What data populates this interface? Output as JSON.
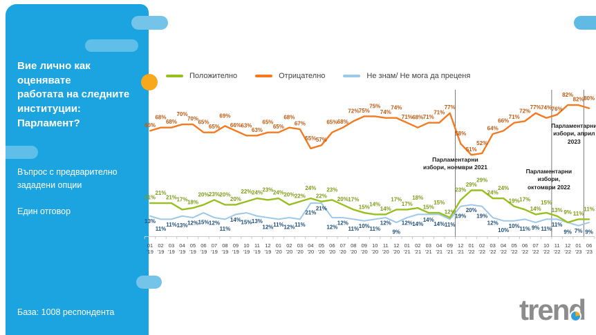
{
  "sidebar": {
    "title": "Вие лично как оценявате\nработата на следните\nинституции:\nПарламент?",
    "subtitle1": "Въпрос с предварително\nзададени опции",
    "subtitle2": "Един отговор",
    "base": "База: 1008 респондента"
  },
  "logo": {
    "text": "trend"
  },
  "chart_data": {
    "type": "line",
    "categories": [
      "01 '19",
      "02 '19",
      "03 '19",
      "04 '19",
      "05 '19",
      "06 '19",
      "07 '19",
      "08 '19",
      "09 '19",
      "10 '19",
      "11 '19",
      "12 '19",
      "01 '20",
      "02 '20",
      "03 '20",
      "04 '20",
      "05 '20",
      "06 '20",
      "07 '20",
      "08 '20",
      "09 '20",
      "10 '20",
      "11 '20",
      "12 '20",
      "01 '21",
      "02 '21",
      "03 '21",
      "04 '21",
      "09 '21",
      "12 '21",
      "01 '22",
      "02 '22",
      "03 '22",
      "04 '22",
      "05 '22",
      "06 '22",
      "07 '22",
      "10 '22",
      "11 '22",
      "12 '22",
      "01 '23",
      "06 '23"
    ],
    "series": [
      {
        "name": "Положително",
        "color": "#97BF1E",
        "label_color": "#7D9C18",
        "values": [
          21,
          21,
          21,
          17,
          18,
          20,
          23,
          20,
          20,
          22,
          24,
          23,
          24,
          20,
          22,
          24,
          22,
          23,
          20,
          17,
          15,
          14,
          14,
          17,
          17,
          18,
          15,
          15,
          12,
          23,
          29,
          29,
          24,
          24,
          19,
          17,
          14,
          15,
          13,
          9,
          11,
          11
        ]
      },
      {
        "name": "Отрицателно",
        "color": "#F4791F",
        "label_color": "#C05A11",
        "values": [
          66,
          68,
          68,
          70,
          70,
          65,
          65,
          69,
          66,
          63,
          63,
          65,
          65,
          68,
          67,
          55,
          57,
          65,
          68,
          72,
          75,
          75,
          74,
          74,
          71,
          68,
          71,
          71,
          77,
          58,
          51,
          52,
          64,
          66,
          71,
          72,
          77,
          74,
          76,
          82,
          82,
          80
        ]
      },
      {
        "name": "Не знам/ Не мога да преценя",
        "color": "#9CC8EA",
        "label_color": "#1F4E79",
        "values": [
          13,
          11,
          11,
          13,
          12,
          15,
          12,
          11,
          14,
          15,
          13,
          12,
          11,
          12,
          11,
          21,
          21,
          12,
          12,
          11,
          10,
          11,
          12,
          9,
          12,
          14,
          14,
          14,
          11,
          19,
          20,
          19,
          12,
          10,
          10,
          11,
          9,
          11,
          11,
          9,
          7,
          9
        ]
      }
    ],
    "annotations": [
      {
        "text": "Парламентарни\nизбори, ноември 2021",
        "between": [
          28,
          29
        ],
        "dx": 0,
        "y": 96
      },
      {
        "text": "Парламентарни\nизбори,\nоктомври 2022",
        "between": [
          37,
          38
        ],
        "dx": -4,
        "y": 113
      },
      {
        "text": "Парламентарни\nизбори, април\n2023",
        "between": [
          40,
          41
        ],
        "dx": -14,
        "y": 47
      }
    ],
    "ylim": [
      0,
      90
    ],
    "legend_position": "top",
    "grid": false
  }
}
